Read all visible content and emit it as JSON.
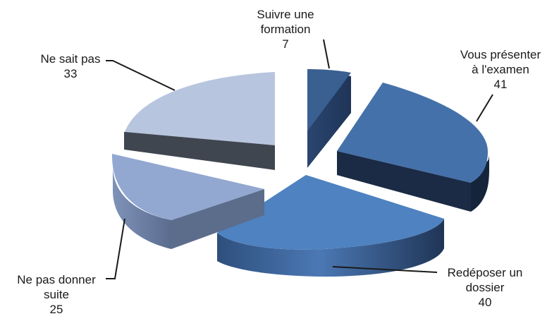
{
  "chart_data": {
    "type": "pie",
    "style": "3d-exploded",
    "title": "",
    "slices": [
      {
        "label_lines": [
          "Suivre une",
          "formation"
        ],
        "value": 7,
        "color": "#3a5f91"
      },
      {
        "label_lines": [
          "Vous présenter",
          "à l'examen"
        ],
        "value": 41,
        "color": "#4571aa"
      },
      {
        "label_lines": [
          "Redéposer un",
          "dossier"
        ],
        "value": 40,
        "color": "#4e82c0"
      },
      {
        "label_lines": [
          "Ne pas donner",
          "suite"
        ],
        "value": 25,
        "color": "#92a8d1"
      },
      {
        "label_lines": [
          "Ne sait pas"
        ],
        "value": 33,
        "color": "#b8c5de"
      }
    ],
    "value_labels": [
      "7",
      "41",
      "40",
      "25",
      "33"
    ]
  }
}
